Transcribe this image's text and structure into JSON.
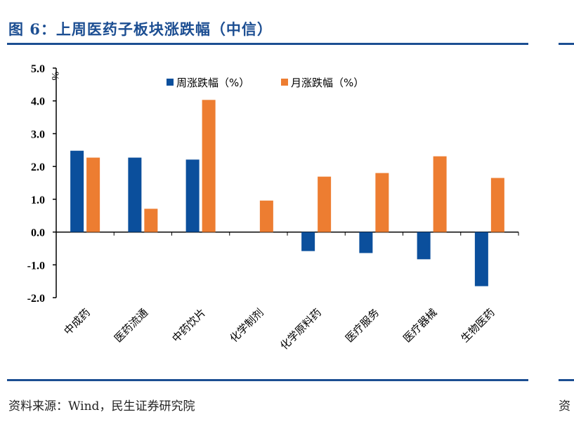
{
  "title": "图 6：上周医药子板块涨跌幅（中信）",
  "source": "资料来源：Wind，民生证券研究院",
  "source_fragment": "资",
  "chart_data": {
    "type": "bar",
    "title": "图 6：上周医药子板块涨跌幅（中信）",
    "ylabel": "%",
    "ylim": [
      -2.0,
      5.0
    ],
    "yticks": [
      "5.0",
      "4.0",
      "3.0",
      "2.0",
      "1.0",
      "0.0",
      "-1.0",
      "-2.0"
    ],
    "categories": [
      "中成药",
      "医药流通",
      "中药饮片",
      "化学制剂",
      "化学原料药",
      "医疗服务",
      "医疗器械",
      "生物医药"
    ],
    "series": [
      {
        "name": "周涨跌幅（%）",
        "color": "#0b4f9c",
        "values": [
          2.48,
          2.27,
          2.21,
          0.0,
          -0.58,
          -0.64,
          -0.83,
          -1.65
        ]
      },
      {
        "name": "月涨跌幅（%）",
        "color": "#ed7d31",
        "values": [
          2.27,
          0.71,
          4.03,
          0.96,
          1.69,
          1.8,
          2.31,
          1.65
        ]
      }
    ],
    "legend": "top-center",
    "grid": false
  }
}
